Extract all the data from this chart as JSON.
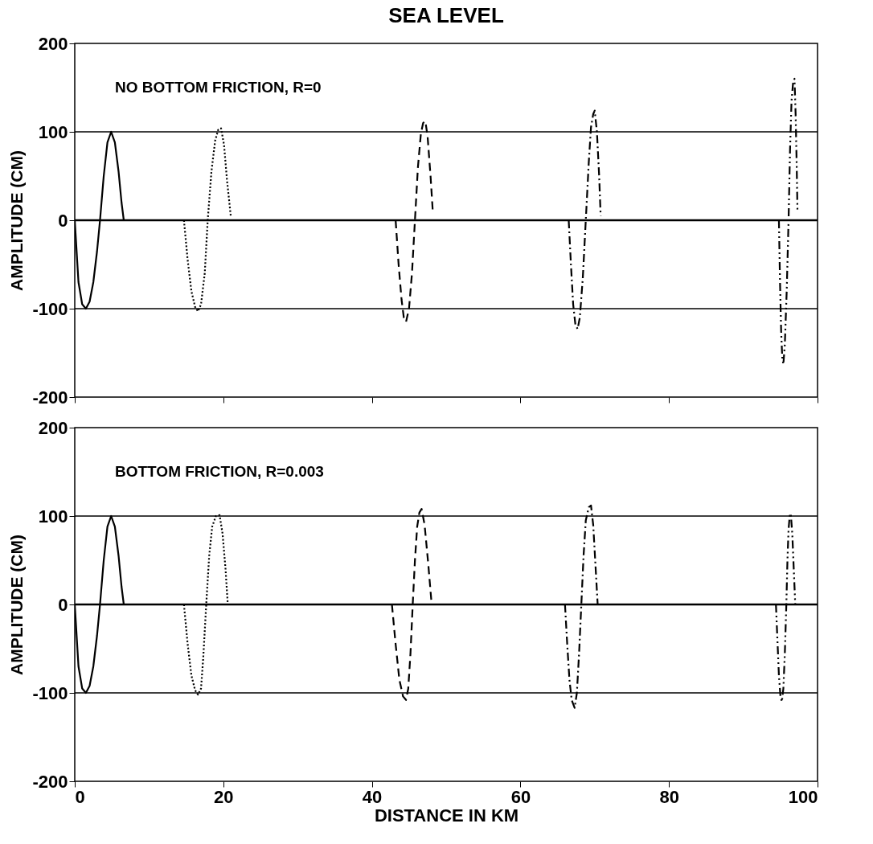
{
  "chart_data": [
    {
      "type": "line",
      "title": "SEA LEVEL",
      "ylabel": "AMPLITUDE (CM)",
      "annotations": [
        "NO BOTTOM FRICTION, R=0"
      ],
      "xlim": [
        0,
        100
      ],
      "xticks": [
        0,
        20,
        40,
        60,
        80,
        100
      ],
      "ylim": [
        -200,
        200
      ],
      "yticks": [
        -200,
        -100,
        0,
        100,
        200
      ],
      "tick_labels": "y",
      "grid": false,
      "ref_lines": [
        {
          "axis": "y",
          "value": 100,
          "color": "#000000"
        },
        {
          "axis": "y",
          "value": 0,
          "color": "#000000"
        },
        {
          "axis": "y",
          "value": -100,
          "color": "#000000"
        }
      ],
      "series": [
        {
          "color": "#000000",
          "line_style": "solid",
          "x": [
            0,
            0.5,
            1,
            1.5,
            2,
            2.5,
            3,
            3.4,
            3.9,
            4.4,
            4.9,
            5.4,
            5.9,
            6.3,
            6.6
          ],
          "values": [
            0,
            -70,
            -95,
            -100,
            -92,
            -70,
            -35,
            0,
            50,
            88,
            100,
            88,
            55,
            20,
            0
          ]
        },
        {
          "color": "#000000",
          "line_style": "dotted",
          "x": [
            14.7,
            15.2,
            15.7,
            16.2,
            16.6,
            17.0,
            17.5,
            17.9,
            18.4,
            18.9,
            19.3,
            19.7,
            20.1,
            20.5,
            21.0
          ],
          "values": [
            0,
            -45,
            -80,
            -98,
            -103,
            -95,
            -60,
            0,
            55,
            90,
            102,
            104,
            85,
            45,
            5
          ]
        },
        {
          "color": "#000000",
          "line_style": "dashed",
          "x": [
            43.2,
            43.6,
            44.0,
            44.3,
            44.6,
            45.0,
            45.4,
            45.8,
            46.2,
            46.6,
            46.9,
            47.2,
            47.5,
            47.9,
            48.2
          ],
          "values": [
            0,
            -50,
            -90,
            -110,
            -115,
            -100,
            -60,
            0,
            60,
            98,
            110,
            112,
            95,
            50,
            10
          ]
        },
        {
          "color": "#000000",
          "line_style": "dashdot",
          "x": [
            66.5,
            66.8,
            67.1,
            67.4,
            67.7,
            68.0,
            68.4,
            68.8,
            69.2,
            69.5,
            69.8,
            70.0,
            70.3,
            70.6,
            70.8
          ],
          "values": [
            0,
            -50,
            -95,
            -118,
            -123,
            -110,
            -65,
            0,
            65,
            105,
            120,
            124,
            100,
            50,
            5
          ]
        },
        {
          "color": "#000000",
          "line_style": "dashdotdot",
          "x": [
            94.8,
            94.95,
            95.1,
            95.25,
            95.4,
            95.6,
            95.85,
            96.1,
            96.3,
            96.5,
            96.7,
            96.9,
            97.05,
            97.2,
            97.3
          ],
          "values": [
            0,
            -70,
            -125,
            -155,
            -163,
            -140,
            -80,
            0,
            80,
            135,
            155,
            160,
            120,
            60,
            10
          ]
        }
      ]
    },
    {
      "type": "line",
      "xlabel": "DISTANCE IN KM",
      "ylabel": "AMPLITUDE (CM)",
      "annotations": [
        "BOTTOM FRICTION, R=0.003"
      ],
      "xlim": [
        0,
        100
      ],
      "xticks": [
        0,
        20,
        40,
        60,
        80,
        100
      ],
      "ylim": [
        -200,
        200
      ],
      "yticks": [
        -200,
        -100,
        0,
        100,
        200
      ],
      "grid": false,
      "ref_lines": [
        {
          "axis": "y",
          "value": 100,
          "color": "#000000"
        },
        {
          "axis": "y",
          "value": 0,
          "color": "#000000"
        },
        {
          "axis": "y",
          "value": -100,
          "color": "#000000"
        }
      ],
      "series": [
        {
          "color": "#000000",
          "line_style": "solid",
          "x": [
            0,
            0.5,
            1,
            1.5,
            2,
            2.5,
            3,
            3.4,
            3.9,
            4.4,
            4.9,
            5.4,
            5.9,
            6.3,
            6.6
          ],
          "values": [
            0,
            -70,
            -95,
            -100,
            -92,
            -70,
            -35,
            0,
            50,
            88,
            100,
            88,
            55,
            20,
            0
          ]
        },
        {
          "color": "#000000",
          "line_style": "dotted",
          "x": [
            14.7,
            15.2,
            15.7,
            16.2,
            16.6,
            17.0,
            17.3,
            17.7,
            18.1,
            18.5,
            19.0,
            19.5,
            19.9,
            20.3,
            20.6
          ],
          "values": [
            0,
            -45,
            -80,
            -97,
            -102,
            -95,
            -60,
            0,
            55,
            88,
            100,
            101,
            80,
            40,
            0
          ]
        },
        {
          "color": "#000000",
          "line_style": "dashed",
          "x": [
            42.7,
            43.2,
            43.7,
            44.2,
            44.6,
            44.9,
            45.2,
            45.5,
            45.8,
            46.1,
            46.4,
            46.7,
            47.1,
            47.6,
            48.0
          ],
          "values": [
            0,
            -45,
            -85,
            -104,
            -108,
            -95,
            -55,
            0,
            50,
            88,
            104,
            108,
            90,
            45,
            5
          ]
        },
        {
          "color": "#000000",
          "line_style": "dashdot",
          "x": [
            66.0,
            66.3,
            66.6,
            66.9,
            67.3,
            67.6,
            67.9,
            68.2,
            68.5,
            68.8,
            69.2,
            69.5,
            69.8,
            70.1,
            70.4
          ],
          "values": [
            0,
            -45,
            -85,
            -108,
            -117,
            -100,
            -55,
            0,
            55,
            95,
            110,
            112,
            90,
            45,
            0
          ]
        },
        {
          "color": "#000000",
          "line_style": "dashdotdot",
          "x": [
            94.4,
            94.6,
            94.8,
            95.0,
            95.2,
            95.4,
            95.6,
            95.8,
            95.95,
            96.1,
            96.25,
            96.4,
            96.6,
            96.8,
            97.0
          ],
          "values": [
            0,
            -40,
            -80,
            -103,
            -110,
            -95,
            -55,
            0,
            50,
            85,
            100,
            103,
            80,
            40,
            0
          ]
        }
      ]
    }
  ]
}
